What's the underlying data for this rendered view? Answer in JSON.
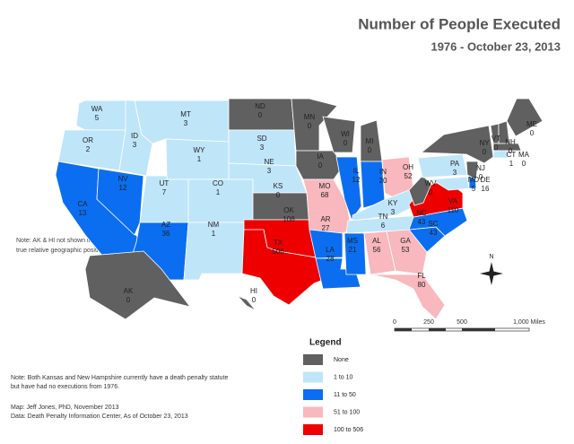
{
  "title": "Number of People Executed",
  "subtitle": "1976 - October 23, 2013",
  "map_note": [
    "Note:  AK & HI not shown in",
    "true relative geographic positions."
  ],
  "states": [
    {
      "abbr": "WA",
      "value": 5,
      "color": "#bfe5f9"
    },
    {
      "abbr": "OR",
      "value": 2,
      "color": "#bfe5f9"
    },
    {
      "abbr": "CA",
      "value": 13,
      "color": "#0b6ef0"
    },
    {
      "abbr": "NV",
      "value": 12,
      "color": "#0b6ef0"
    },
    {
      "abbr": "ID",
      "value": 3,
      "color": "#bfe5f9"
    },
    {
      "abbr": "MT",
      "value": 3,
      "color": "#bfe5f9"
    },
    {
      "abbr": "WY",
      "value": 1,
      "color": "#bfe5f9"
    },
    {
      "abbr": "UT",
      "value": 7,
      "color": "#bfe5f9"
    },
    {
      "abbr": "CO",
      "value": 1,
      "color": "#bfe5f9"
    },
    {
      "abbr": "AZ",
      "value": 36,
      "color": "#0b6ef0"
    },
    {
      "abbr": "NM",
      "value": 1,
      "color": "#bfe5f9"
    },
    {
      "abbr": "ND",
      "value": 0,
      "color": "#606060"
    },
    {
      "abbr": "SD",
      "value": 3,
      "color": "#bfe5f9"
    },
    {
      "abbr": "NE",
      "value": 3,
      "color": "#bfe5f9"
    },
    {
      "abbr": "KS",
      "value": 0,
      "color": "#606060"
    },
    {
      "abbr": "OK",
      "value": 108,
      "color": "#ee0000"
    },
    {
      "abbr": "TX",
      "value": 506,
      "color": "#ee0000"
    },
    {
      "abbr": "MN",
      "value": 0,
      "color": "#606060"
    },
    {
      "abbr": "IA",
      "value": 0,
      "color": "#606060"
    },
    {
      "abbr": "MO",
      "value": 68,
      "color": "#f8b8bd"
    },
    {
      "abbr": "AR",
      "value": 27,
      "color": "#0b6ef0"
    },
    {
      "abbr": "LA",
      "value": 28,
      "color": "#0b6ef0"
    },
    {
      "abbr": "WI",
      "value": 0,
      "color": "#606060"
    },
    {
      "abbr": "IL",
      "value": 12,
      "color": "#0b6ef0"
    },
    {
      "abbr": "MI",
      "value": 0,
      "color": "#606060"
    },
    {
      "abbr": "IN",
      "value": 20,
      "color": "#0b6ef0"
    },
    {
      "abbr": "OH",
      "value": 52,
      "color": "#f8b8bd"
    },
    {
      "abbr": "KY",
      "value": 3,
      "color": "#bfe5f9"
    },
    {
      "abbr": "TN",
      "value": 6,
      "color": "#bfe5f9"
    },
    {
      "abbr": "MS",
      "value": 21,
      "color": "#0b6ef0"
    },
    {
      "abbr": "AL",
      "value": 56,
      "color": "#f8b8bd"
    },
    {
      "abbr": "GA",
      "value": 53,
      "color": "#f8b8bd"
    },
    {
      "abbr": "FL",
      "value": 80,
      "color": "#f8b8bd"
    },
    {
      "abbr": "SC",
      "value": 43,
      "color": "#0b6ef0"
    },
    {
      "abbr": "NC",
      "value": 43,
      "color": "#0b6ef0"
    },
    {
      "abbr": "VA",
      "value": 110,
      "color": "#ee0000"
    },
    {
      "abbr": "WV",
      "value": 0,
      "color": "#606060"
    },
    {
      "abbr": "PA",
      "value": 3,
      "color": "#bfe5f9"
    },
    {
      "abbr": "MD",
      "value": 5,
      "color": "#bfe5f9"
    },
    {
      "abbr": "DE",
      "value": 16,
      "color": "#0b6ef0"
    },
    {
      "abbr": "NJ",
      "value": 0,
      "color": "#606060"
    },
    {
      "abbr": "NY",
      "value": 0,
      "color": "#606060"
    },
    {
      "abbr": "VT",
      "value": 0,
      "color": "#606060"
    },
    {
      "abbr": "NH",
      "value": 0,
      "color": "#606060"
    },
    {
      "abbr": "ME",
      "value": 0,
      "color": "#606060"
    },
    {
      "abbr": "MA",
      "value": 0,
      "color": "#606060"
    },
    {
      "abbr": "CT",
      "value": 1,
      "color": "#bfe5f9"
    },
    {
      "abbr": "AK",
      "value": 0,
      "color": "#606060"
    },
    {
      "abbr": "HI",
      "value": 0,
      "color": "#606060"
    }
  ],
  "scale_labels": [
    "0",
    "250",
    "500",
    "1,000 Miles"
  ],
  "compass": "N",
  "legend": {
    "title": "Legend",
    "items": [
      {
        "label": "None",
        "color": "#606060"
      },
      {
        "label": "1 to 10",
        "color": "#bfe5f9"
      },
      {
        "label": "11 to 50",
        "color": "#0b6ef0"
      },
      {
        "label": "51 to 100",
        "color": "#f8b8bd"
      },
      {
        "label": "100 to 506",
        "color": "#ee0000"
      }
    ]
  },
  "notes": [
    "Note:  Both Kansas and New Hampshire currently have a death penalty statute",
    "but have had no executions from 1976.",
    "Map:  Jeff Jones, PhD, November 2013",
    "Data:  Death Penalty Information Center, As of October 23, 2013"
  ]
}
